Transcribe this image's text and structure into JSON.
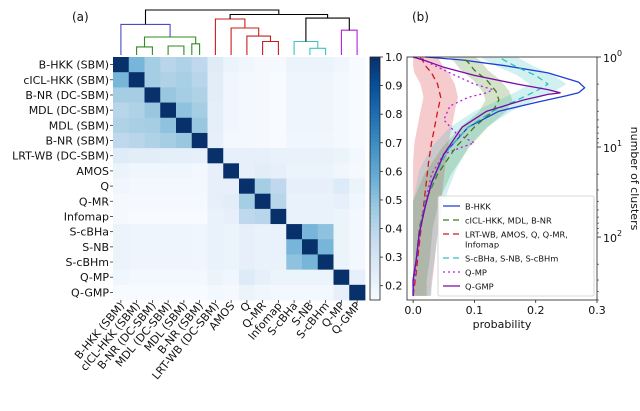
{
  "panels": {
    "a": "(a)",
    "b": "(b)"
  },
  "chart_data": [
    {
      "type": "heatmap",
      "panel": "(a)",
      "title": "",
      "labels": [
        "B-HKK (SBM)",
        "cICL-HKK (SBM)",
        "B-NR (DC-SBM)",
        "MDL (DC-SBM)",
        "MDL (SBM)",
        "B-NR (SBM)",
        "LRT-WB (DC-SBM)",
        "AMOS",
        "Q",
        "Q-MR",
        "Infomap",
        "S-cBHa",
        "S-NB",
        "S-cBHm",
        "Q-MP",
        "Q-GMP"
      ],
      "matrix": [
        [
          1.0,
          0.55,
          0.45,
          0.4,
          0.42,
          0.38,
          0.25,
          0.2,
          0.18,
          0.16,
          0.16,
          0.2,
          0.2,
          0.2,
          0.18,
          0.15
        ],
        [
          0.55,
          1.0,
          0.45,
          0.42,
          0.44,
          0.4,
          0.24,
          0.18,
          0.17,
          0.16,
          0.15,
          0.19,
          0.19,
          0.19,
          0.17,
          0.15
        ],
        [
          0.45,
          0.45,
          1.0,
          0.48,
          0.45,
          0.42,
          0.24,
          0.18,
          0.17,
          0.16,
          0.15,
          0.19,
          0.19,
          0.19,
          0.17,
          0.15
        ],
        [
          0.4,
          0.42,
          0.48,
          1.0,
          0.5,
          0.45,
          0.23,
          0.18,
          0.17,
          0.16,
          0.15,
          0.19,
          0.19,
          0.19,
          0.17,
          0.15
        ],
        [
          0.42,
          0.44,
          0.45,
          0.5,
          1.0,
          0.48,
          0.23,
          0.18,
          0.17,
          0.16,
          0.15,
          0.19,
          0.19,
          0.19,
          0.17,
          0.15
        ],
        [
          0.38,
          0.4,
          0.42,
          0.45,
          0.48,
          1.0,
          0.22,
          0.17,
          0.17,
          0.16,
          0.15,
          0.18,
          0.18,
          0.18,
          0.17,
          0.15
        ],
        [
          0.25,
          0.24,
          0.24,
          0.23,
          0.23,
          0.22,
          1.0,
          0.22,
          0.22,
          0.22,
          0.21,
          0.21,
          0.21,
          0.21,
          0.2,
          0.17
        ],
        [
          0.2,
          0.18,
          0.18,
          0.18,
          0.18,
          0.17,
          0.22,
          1.0,
          0.22,
          0.24,
          0.22,
          0.2,
          0.2,
          0.2,
          0.18,
          0.16
        ],
        [
          0.18,
          0.17,
          0.17,
          0.17,
          0.17,
          0.17,
          0.22,
          0.22,
          1.0,
          0.45,
          0.38,
          0.22,
          0.22,
          0.22,
          0.26,
          0.2
        ],
        [
          0.16,
          0.16,
          0.16,
          0.16,
          0.16,
          0.16,
          0.22,
          0.24,
          0.45,
          1.0,
          0.4,
          0.21,
          0.21,
          0.21,
          0.22,
          0.18
        ],
        [
          0.16,
          0.15,
          0.15,
          0.15,
          0.15,
          0.15,
          0.21,
          0.22,
          0.38,
          0.4,
          1.0,
          0.21,
          0.21,
          0.21,
          0.2,
          0.17
        ],
        [
          0.2,
          0.19,
          0.19,
          0.19,
          0.19,
          0.18,
          0.21,
          0.2,
          0.22,
          0.21,
          0.21,
          1.0,
          0.55,
          0.5,
          0.2,
          0.17
        ],
        [
          0.2,
          0.19,
          0.19,
          0.19,
          0.19,
          0.18,
          0.21,
          0.2,
          0.22,
          0.21,
          0.21,
          0.55,
          1.0,
          0.55,
          0.2,
          0.17
        ],
        [
          0.2,
          0.19,
          0.19,
          0.19,
          0.19,
          0.18,
          0.21,
          0.2,
          0.22,
          0.21,
          0.21,
          0.5,
          0.55,
          1.0,
          0.2,
          0.17
        ],
        [
          0.18,
          0.17,
          0.17,
          0.17,
          0.17,
          0.17,
          0.2,
          0.18,
          0.26,
          0.22,
          0.2,
          0.2,
          0.2,
          0.2,
          1.0,
          0.22
        ],
        [
          0.15,
          0.15,
          0.15,
          0.15,
          0.15,
          0.15,
          0.17,
          0.16,
          0.2,
          0.18,
          0.17,
          0.17,
          0.17,
          0.17,
          0.22,
          1.0
        ]
      ],
      "colorbar": {
        "range": [
          0.15,
          1.0
        ],
        "ticks": [
          0.2,
          0.3,
          0.4,
          0.5,
          0.6,
          0.7,
          0.8,
          0.9,
          1.0
        ],
        "colormap": "Blues"
      },
      "dendrogram": {
        "links": [
          {
            "a": [
              1,
              2
            ],
            "h": 0.18,
            "color": "#2e8b1e"
          },
          {
            "a": [
              3,
              4
            ],
            "h": 0.2,
            "color": "#2e8b1e"
          },
          {
            "a": [
              4.5,
              5
            ],
            "h": 0.25,
            "color": "#2e8b1e"
          },
          {
            "a": [
              1.5,
              4.75
            ],
            "h": 0.4,
            "color": "#2e8b1e"
          },
          {
            "a": [
              0,
              3.125
            ],
            "h": 0.68,
            "color": "#4b4bc8"
          },
          {
            "a": [
              9,
              10
            ],
            "h": 0.3,
            "color": "#c81e1e"
          },
          {
            "a": [
              8,
              9.5
            ],
            "h": 0.42,
            "color": "#c81e1e"
          },
          {
            "a": [
              7,
              8.75
            ],
            "h": 0.6,
            "color": "#c81e1e"
          },
          {
            "a": [
              6,
              7.875
            ],
            "h": 0.8,
            "color": "#c81e1e"
          },
          {
            "a": [
              12,
              13
            ],
            "h": 0.15,
            "color": "#40c0c0"
          },
          {
            "a": [
              11,
              12.5
            ],
            "h": 0.3,
            "color": "#40c0c0"
          },
          {
            "a": [
              14,
              15
            ],
            "h": 0.55,
            "color": "#b61eda"
          },
          {
            "a": [
              11.75,
              14.5
            ],
            "h": 0.82,
            "color": "#000000"
          },
          {
            "a": [
              6.9375,
              13.125
            ],
            "h": 0.9,
            "color": "#000000"
          },
          {
            "a": [
              1.5625,
              10.03
            ],
            "h": 1.0,
            "color": "#000000"
          }
        ]
      }
    },
    {
      "type": "line",
      "panel": "(b)",
      "title": "",
      "xlabel": "probability",
      "ylabel": "number of clusters",
      "xlim": [
        -0.01,
        0.3
      ],
      "xticks": [
        0.0,
        0.1,
        0.2,
        0.3
      ],
      "xtick_labels": [
        "0.0",
        "0.1",
        "0.2",
        "0.3"
      ],
      "ylim": [
        1,
        500
      ],
      "yscale": "log",
      "y_inverted": true,
      "yticks": [
        1,
        10,
        100
      ],
      "ytick_labels": [
        "10",
        "10",
        "10"
      ],
      "ytick_exponents": [
        "0",
        "1",
        "2"
      ],
      "legend_position": "lower-right",
      "series": [
        {
          "name": "B-HKK",
          "color": "#1f3fd6",
          "dash": "solid",
          "band": false,
          "band_width": 0,
          "points": [
            [
              0.0,
              450
            ],
            [
              0.0,
              300
            ],
            [
              0.005,
              180
            ],
            [
              0.01,
              90
            ],
            [
              0.02,
              45
            ],
            [
              0.03,
              25
            ],
            [
              0.05,
              12
            ],
            [
              0.09,
              6
            ],
            [
              0.14,
              4
            ],
            [
              0.2,
              3.2
            ],
            [
              0.25,
              2.7
            ],
            [
              0.27,
              2.5
            ],
            [
              0.28,
              2.2
            ],
            [
              0.27,
              1.9
            ],
            [
              0.22,
              1.5
            ],
            [
              0.15,
              1.25
            ],
            [
              0.08,
              1.08
            ],
            [
              0.02,
              1.0
            ]
          ]
        },
        {
          "name": "cICL-HKK, MDL, B-NR",
          "color": "#3d7d12",
          "dash": "6,4",
          "band": true,
          "band_width": 0.022,
          "points": [
            [
              0.0,
              450
            ],
            [
              0.0,
              300
            ],
            [
              0.005,
              180
            ],
            [
              0.01,
              80
            ],
            [
              0.02,
              40
            ],
            [
              0.04,
              20
            ],
            [
              0.07,
              10
            ],
            [
              0.1,
              6
            ],
            [
              0.13,
              4
            ],
            [
              0.14,
              3
            ],
            [
              0.135,
              2.4
            ],
            [
              0.12,
              1.8
            ],
            [
              0.1,
              1.4
            ],
            [
              0.09,
              1.15
            ],
            [
              0.08,
              1.0
            ]
          ]
        },
        {
          "name": "LRT-WB, AMOS, Q, Q-MR, Infomap",
          "color": "#d4141e",
          "dash": "6,4",
          "band": true,
          "band_width": 0.028,
          "points": [
            [
              0.0,
              450
            ],
            [
              0.005,
              250
            ],
            [
              0.01,
              120
            ],
            [
              0.015,
              60
            ],
            [
              0.02,
              30
            ],
            [
              0.025,
              15
            ],
            [
              0.03,
              9
            ],
            [
              0.035,
              6
            ],
            [
              0.04,
              4
            ],
            [
              0.045,
              2.8
            ],
            [
              0.04,
              2
            ],
            [
              0.03,
              1.5
            ],
            [
              0.02,
              1.25
            ],
            [
              0.015,
              1.08
            ],
            [
              0.01,
              1.0
            ]
          ]
        },
        {
          "name": "S-cBHa, S-NB, S-cBHm",
          "color": "#2fbfbf",
          "dash": "6,4",
          "band": true,
          "band_width": 0.03,
          "points": [
            [
              0.0,
              450
            ],
            [
              0.0,
              300
            ],
            [
              0.005,
              180
            ],
            [
              0.01,
              90
            ],
            [
              0.02,
              40
            ],
            [
              0.04,
              18
            ],
            [
              0.06,
              10
            ],
            [
              0.09,
              6
            ],
            [
              0.13,
              4
            ],
            [
              0.17,
              3
            ],
            [
              0.2,
              2.4
            ],
            [
              0.22,
              2.0
            ],
            [
              0.2,
              1.6
            ],
            [
              0.17,
              1.3
            ],
            [
              0.15,
              1.1
            ],
            [
              0.14,
              1.0
            ]
          ]
        },
        {
          "name": "Q-MP",
          "color": "#b61eda",
          "dash": "2,3",
          "band": false,
          "band_width": 0,
          "points": [
            [
              0.0,
              450
            ],
            [
              0.005,
              200
            ],
            [
              0.015,
              60
            ],
            [
              0.03,
              20
            ],
            [
              0.05,
              12
            ],
            [
              0.08,
              10
            ],
            [
              0.1,
              9
            ],
            [
              0.07,
              7
            ],
            [
              0.05,
              5
            ],
            [
              0.06,
              3.5
            ],
            [
              0.09,
              2.8
            ],
            [
              0.12,
              2.5
            ],
            [
              0.13,
              2.3
            ],
            [
              0.1,
              2.0
            ],
            [
              0.06,
              1.5
            ],
            [
              0.03,
              1.2
            ],
            [
              0.01,
              1.0
            ]
          ]
        },
        {
          "name": "Q-GMP",
          "color": "#7a0aa8",
          "dash": "solid",
          "band": false,
          "band_width": 0,
          "points": [
            [
              0.0,
              450
            ],
            [
              0.0,
              300
            ],
            [
              0.005,
              180
            ],
            [
              0.01,
              90
            ],
            [
              0.02,
              45
            ],
            [
              0.03,
              25
            ],
            [
              0.05,
              12
            ],
            [
              0.08,
              6
            ],
            [
              0.12,
              4
            ],
            [
              0.18,
              3
            ],
            [
              0.22,
              2.6
            ],
            [
              0.24,
              2.5
            ],
            [
              0.22,
              2.3
            ],
            [
              0.17,
              2.0
            ],
            [
              0.1,
              1.6
            ],
            [
              0.05,
              1.3
            ],
            [
              0.02,
              1.1
            ],
            [
              0.0,
              1.0
            ]
          ]
        }
      ]
    }
  ]
}
